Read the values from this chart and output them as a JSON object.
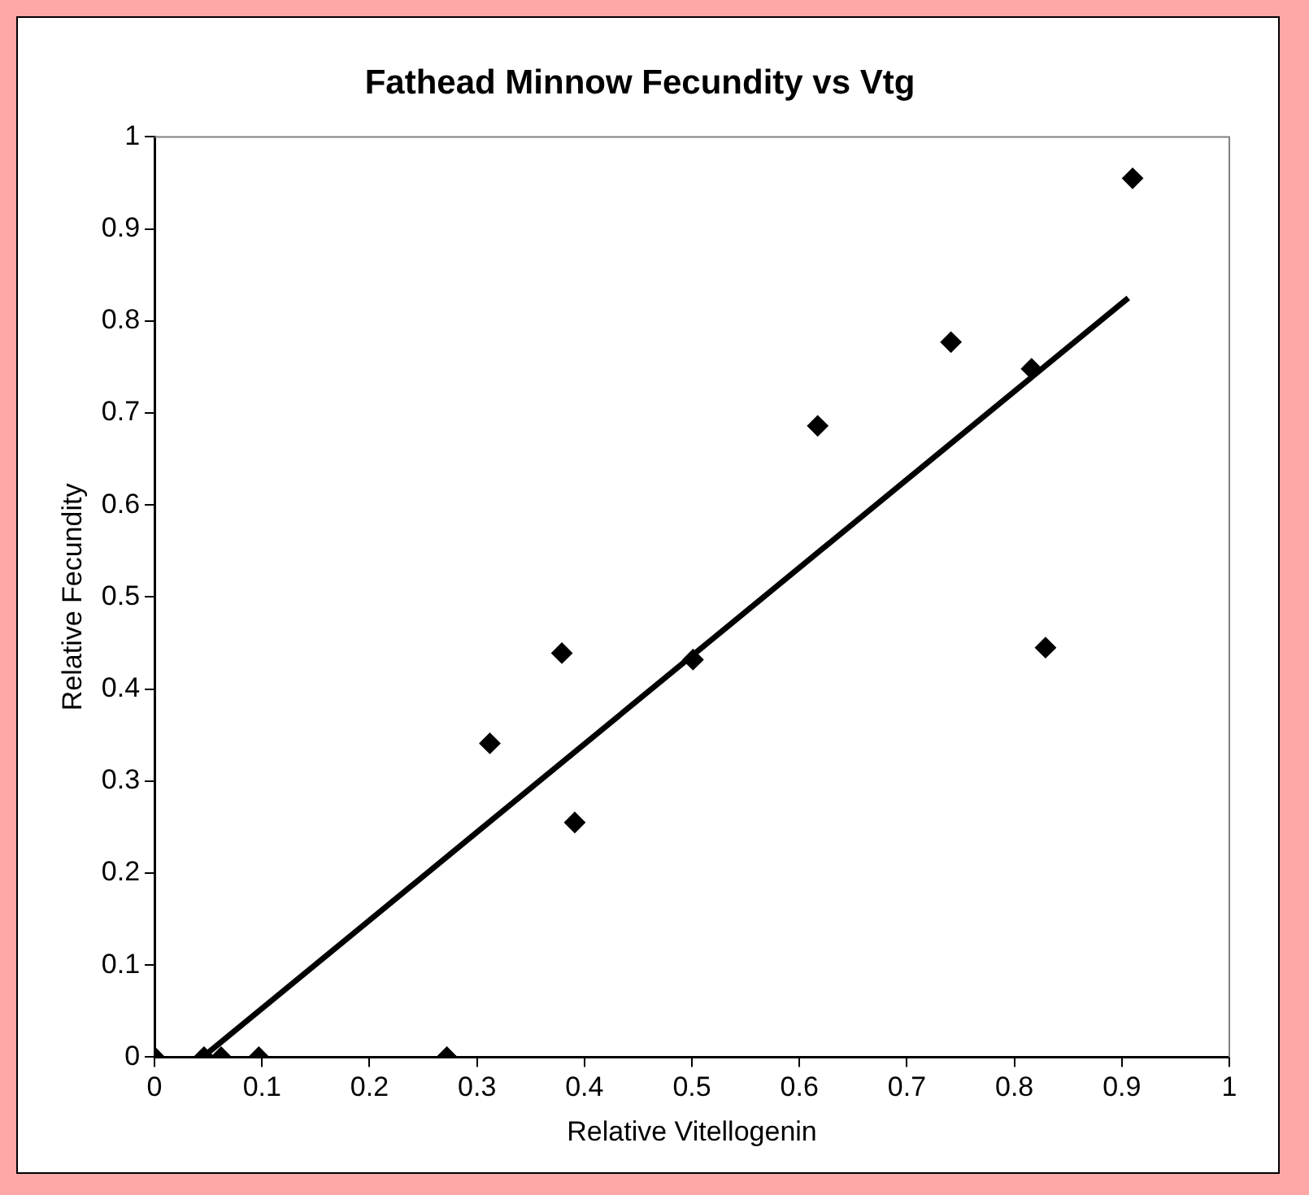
{
  "chart_data": {
    "type": "scatter",
    "title": "Fathead Minnow Fecundity vs Vtg",
    "xlabel": "Relative Vitellogenin",
    "ylabel": "Relative Fecundity",
    "xlim": [
      0,
      1
    ],
    "xticks": [
      0,
      0.1,
      0.2,
      0.3,
      0.4,
      0.5,
      0.6,
      0.7,
      0.8,
      0.9,
      1
    ],
    "ylim": [
      0,
      1
    ],
    "yticks": [
      0,
      0.1,
      0.2,
      0.3,
      0.4,
      0.5,
      0.6,
      0.7,
      0.8,
      0.9,
      1
    ],
    "grid": false,
    "series": [
      {
        "marker": "diamond",
        "color": "#000000",
        "x": [
          0,
          0.046,
          0.062,
          0.097,
          0.272,
          0.312,
          0.379,
          0.391,
          0.501,
          0.617,
          0.741,
          0.816,
          0.829,
          0.91
        ],
        "values": [
          0,
          0,
          0,
          0,
          0,
          0.341,
          0.439,
          0.255,
          0.432,
          0.686,
          0.777,
          0.748,
          0.445,
          0.955
        ]
      },
      {
        "type": "line",
        "marker": "none",
        "color": "#000000",
        "x": [
          0.05,
          0.906
        ],
        "values": [
          0.005,
          0.825
        ]
      }
    ]
  }
}
